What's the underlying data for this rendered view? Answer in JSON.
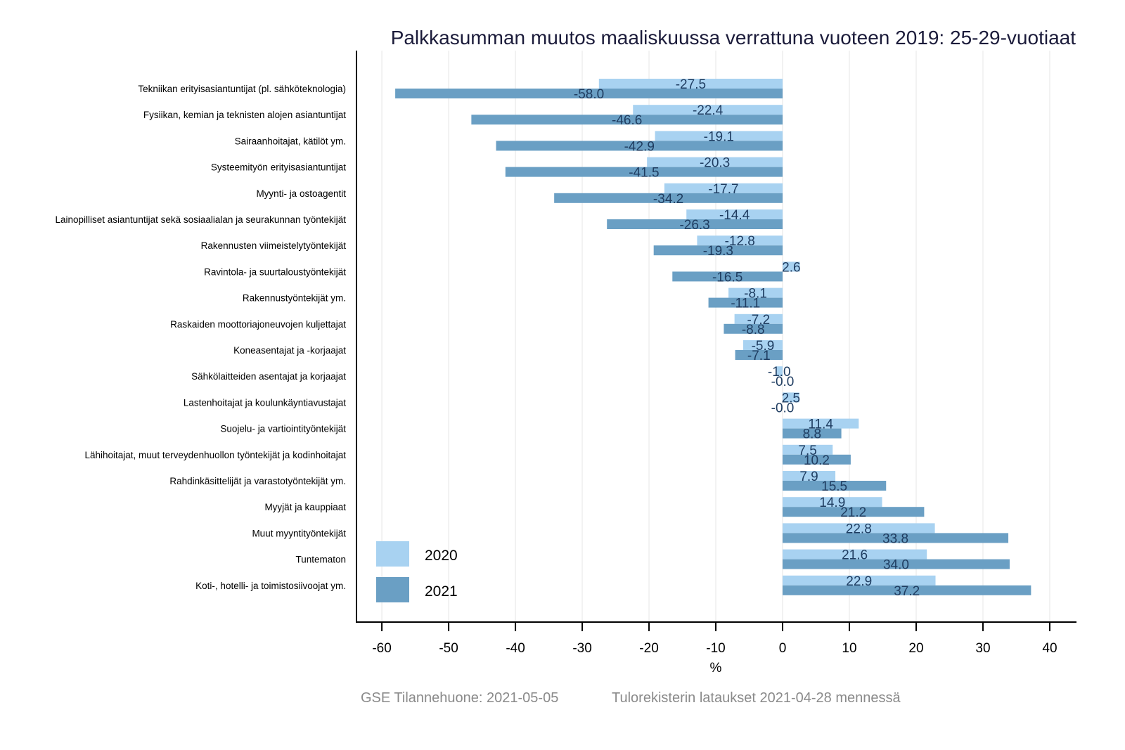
{
  "chart_data": {
    "type": "bar",
    "orientation": "horizontal",
    "title": "Palkkasumman muutos maaliskuussa verrattuna vuoteen 2019: 25-29-vuotiaat",
    "xlabel": "%",
    "ylabel": "",
    "xlim": [
      -63.8,
      43.9
    ],
    "xticks": [
      -60,
      -50,
      -40,
      -30,
      -20,
      -10,
      0,
      10,
      20,
      30,
      40
    ],
    "grid": "vertical",
    "legend_position": "bottom-left",
    "categories": [
      "Tekniikan erityisasiantuntijat (pl. sähköteknologia)",
      "Fysiikan, kemian ja teknisten alojen asiantuntijat",
      "Sairaanhoitajat, kätilöt ym.",
      "Systeemityön erityisasiantuntijat",
      "Myynti- ja ostoagentit",
      "Lainopilliset asiantuntijat sekä sosiaalialan ja seurakunnan työntekijät",
      "Rakennusten viimeistelytyöntekijät",
      "Ravintola- ja suurtaloustyöntekijät",
      "Rakennustyöntekijät ym.",
      "Raskaiden moottoriajoneuvojen kuljettajat",
      "Koneasentajat ja -korjaajat",
      "Sähkölaitteiden asentajat ja korjaajat",
      "Lastenhoitajat ja koulunkäyntiavustajat",
      "Suojelu- ja vartiointityöntekijät",
      "Lähihoitajat, muut terveydenhuollon työntekijät ja kodinhoitajat",
      "Rahdinkäsittelijät ja varastotyöntekijät ym.",
      "Myyjät ja kauppiaat",
      "Muut myyntityöntekijät",
      "Tuntematon",
      "Koti-, hotelli- ja toimistosiivoojat ym."
    ],
    "series": [
      {
        "name": "2020",
        "color": "#a8d2f1",
        "values": [
          -27.5,
          -22.4,
          -19.1,
          -20.3,
          -17.7,
          -14.4,
          -12.8,
          2.6,
          -8.1,
          -7.2,
          -5.9,
          -1.0,
          2.5,
          11.4,
          7.5,
          7.9,
          14.9,
          22.8,
          21.6,
          22.9
        ],
        "labels": [
          "-27.5",
          "-22.4",
          "-19.1",
          "-20.3",
          "-17.7",
          "-14.4",
          "-12.8",
          "2.6",
          "-8.1",
          "-7.2",
          "-5.9",
          "-1.0",
          "2.5",
          "11.4",
          "7.5",
          "7.9",
          "14.9",
          "22.8",
          "21.6",
          "22.9"
        ]
      },
      {
        "name": "2021",
        "color": "#6a9fc4",
        "values": [
          -58.0,
          -46.6,
          -42.9,
          -41.5,
          -34.2,
          -26.3,
          -19.3,
          -16.5,
          -11.1,
          -8.8,
          -7.1,
          -0.0,
          -0.0,
          8.8,
          10.2,
          15.5,
          21.2,
          33.8,
          34.0,
          37.2
        ],
        "labels": [
          "-58.0",
          "-46.6",
          "-42.9",
          "-41.5",
          "-34.2",
          "-26.3",
          "-19.3",
          "-16.5",
          "-11.1",
          "-8.8",
          "-7.1",
          "-0.0",
          "-0.0",
          "8.8",
          "10.2",
          "15.5",
          "21.2",
          "33.8",
          "34.0",
          "37.2"
        ]
      }
    ]
  },
  "footer": {
    "source": "GSE Tilannehuone: 2021-05-05",
    "note": "Tulorekisterin lataukset 2021-04-28 mennessä"
  }
}
